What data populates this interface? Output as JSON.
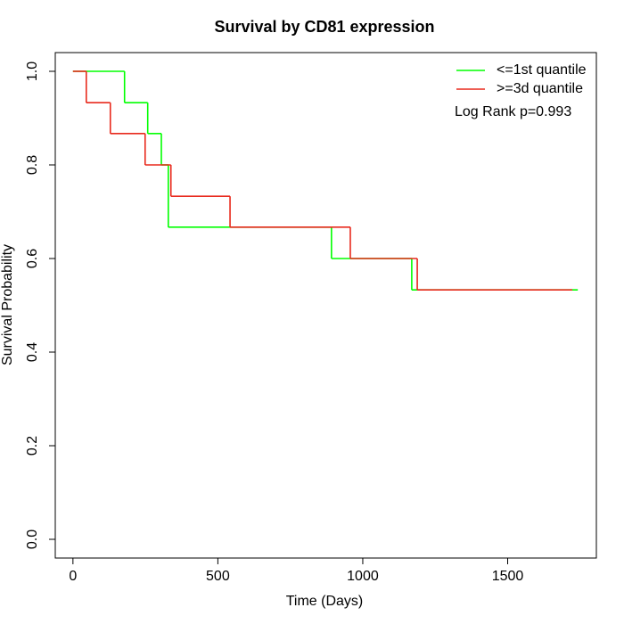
{
  "chart_data": {
    "type": "step",
    "title": "Survival by CD81 expression",
    "x_label": "Time (Days)",
    "y_label": "Survival Probability",
    "annotation": "Log Rank p=0.993",
    "legend_position": "top-right",
    "xlim": [
      -61,
      1806
    ],
    "ylim": [
      -0.04,
      1.04
    ],
    "xticks": [
      0,
      500,
      1000,
      1500
    ],
    "yticks": [
      {
        "value": 0,
        "label": "0.0"
      },
      0.2,
      0.4,
      0.6,
      0.8,
      {
        "value": 1,
        "label": "1.0"
      }
    ],
    "series": [
      {
        "name": "<=1st quantile",
        "color": "#00ff00",
        "x": [
          0,
          178,
          258,
          305,
          329,
          892,
          1169,
          1742
        ],
        "values": [
          1,
          0.933,
          0.867,
          0.8,
          0.667,
          0.6,
          0.533,
          0.533
        ]
      },
      {
        "name": ">=3d quantile",
        "color": "#e8291c",
        "x": [
          0,
          46,
          129,
          249,
          338,
          542,
          957,
          1188,
          1723
        ],
        "values": [
          1,
          0.933,
          0.867,
          0.8,
          0.733,
          0.667,
          0.6,
          0.533,
          0.533
        ]
      }
    ]
  }
}
